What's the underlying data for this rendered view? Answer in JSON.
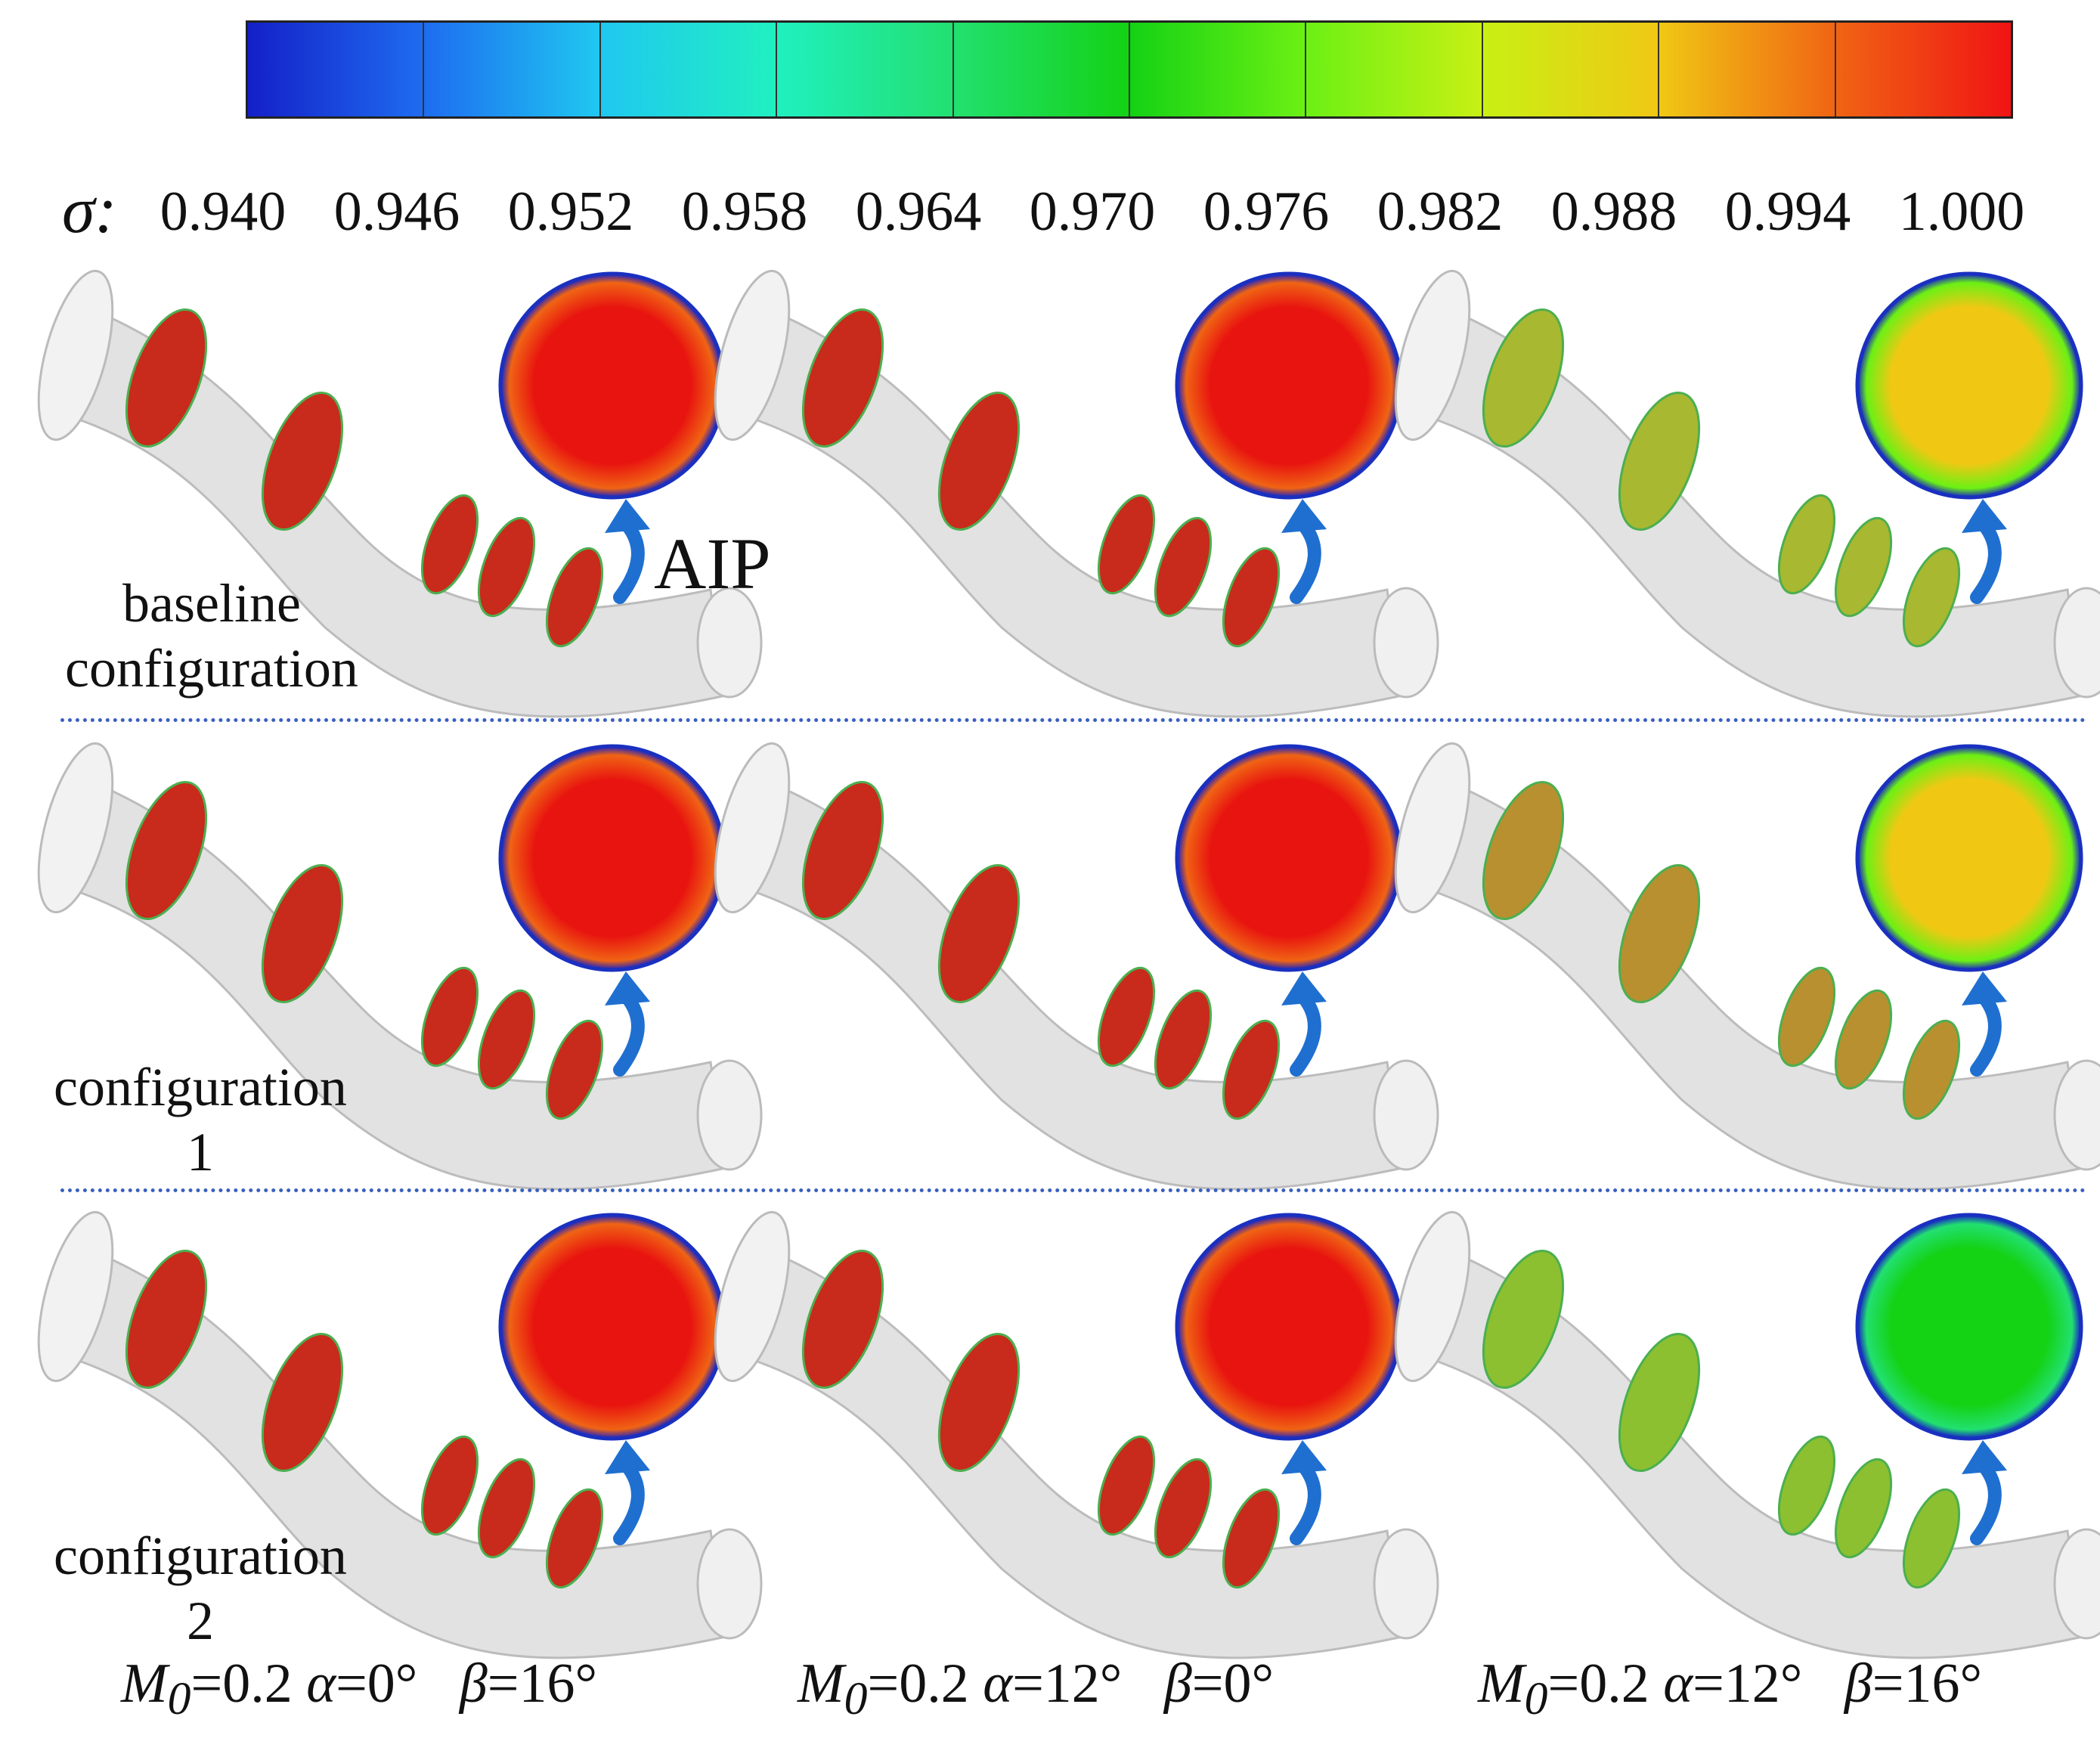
{
  "colorbar": {
    "symbol": "σ:",
    "ticks": [
      "0.940",
      "0.946",
      "0.952",
      "0.958",
      "0.964",
      "0.970",
      "0.976",
      "0.982",
      "0.988",
      "0.994",
      "1.000"
    ],
    "colors": [
      "#1420c8",
      "#1e6cf0",
      "#1fc8f0",
      "#20f0c0",
      "#22e070",
      "#14d214",
      "#6cf014",
      "#c8f014",
      "#f0c814",
      "#f06414",
      "#f01414"
    ]
  },
  "annotation": {
    "aip": "AIP"
  },
  "rows": [
    {
      "label_line1": "baseline",
      "label_line2": "configuration"
    },
    {
      "label_line1": "configuration",
      "label_line2": "1"
    },
    {
      "label_line1": "configuration",
      "label_line2": "2"
    }
  ],
  "cases": [
    {
      "m_sym": "M",
      "m_sub": "0",
      "m_val": "=0.2 ",
      "a_sym": "α",
      "a_val": "=0°",
      "b_sym": "β",
      "b_val": "=16°"
    },
    {
      "m_sym": "M",
      "m_sub": "0",
      "m_val": "=0.2 ",
      "a_sym": "α",
      "a_val": "=12°",
      "b_sym": "β",
      "b_val": "=0°"
    },
    {
      "m_sym": "M",
      "m_sub": "0",
      "m_val": "=0.2 ",
      "a_sym": "α",
      "a_val": "=12°",
      "b_sym": "β",
      "b_val": "=16°"
    }
  ]
}
